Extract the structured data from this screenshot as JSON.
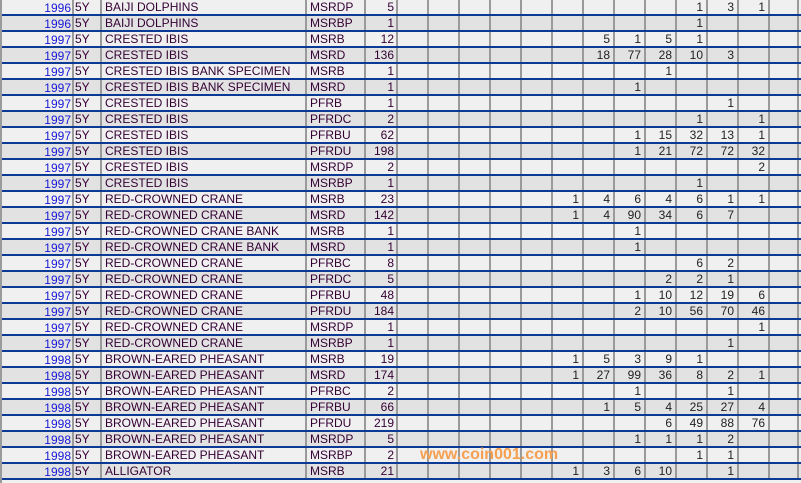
{
  "colors": {
    "row_light": "#f0f0f0",
    "row_dark": "#e2e2e2",
    "row_divider": "#0a3a96",
    "year_link": "#1a1ad6",
    "text": "#330033",
    "watermark": "#f5a050"
  },
  "watermark": "www.coin001.com",
  "grade_columns": 13,
  "rows": [
    {
      "year": "1996",
      "term": "5Y",
      "name": "BAIJI DOLPHINS",
      "grade": "MSRDP",
      "total": "5",
      "counts": {
        "9": "1",
        "10": "3",
        "11": "1"
      }
    },
    {
      "year": "1996",
      "term": "5Y",
      "name": "BAIJI DOLPHINS",
      "grade": "MSRBP",
      "total": "1",
      "counts": {
        "9": "1"
      }
    },
    {
      "year": "1997",
      "term": "5Y",
      "name": "CRESTED IBIS",
      "grade": "MSRB",
      "total": "12",
      "counts": {
        "6": "5",
        "7": "1",
        "8": "5",
        "9": "1"
      }
    },
    {
      "year": "1997",
      "term": "5Y",
      "name": "CRESTED IBIS",
      "grade": "MSRD",
      "total": "136",
      "counts": {
        "6": "18",
        "7": "77",
        "8": "28",
        "9": "10",
        "10": "3"
      }
    },
    {
      "year": "1997",
      "term": "5Y",
      "name": "CRESTED IBIS BANK SPECIMEN",
      "grade": "MSRB",
      "total": "1",
      "counts": {
        "8": "1"
      }
    },
    {
      "year": "1997",
      "term": "5Y",
      "name": "CRESTED IBIS BANK SPECIMEN",
      "grade": "MSRD",
      "total": "1",
      "counts": {
        "7": "1"
      }
    },
    {
      "year": "1997",
      "term": "5Y",
      "name": "CRESTED IBIS",
      "grade": "PFRB",
      "total": "1",
      "counts": {
        "10": "1"
      }
    },
    {
      "year": "1997",
      "term": "5Y",
      "name": "CRESTED IBIS",
      "grade": "PFRDC",
      "total": "2",
      "counts": {
        "9": "1",
        "11": "1"
      }
    },
    {
      "year": "1997",
      "term": "5Y",
      "name": "CRESTED IBIS",
      "grade": "PFRBU",
      "total": "62",
      "counts": {
        "7": "1",
        "8": "15",
        "9": "32",
        "10": "13",
        "11": "1"
      }
    },
    {
      "year": "1997",
      "term": "5Y",
      "name": "CRESTED IBIS",
      "grade": "PFRDU",
      "total": "198",
      "counts": {
        "7": "1",
        "8": "21",
        "9": "72",
        "10": "72",
        "11": "32"
      }
    },
    {
      "year": "1997",
      "term": "5Y",
      "name": "CRESTED IBIS",
      "grade": "MSRDP",
      "total": "2",
      "counts": {
        "11": "2"
      }
    },
    {
      "year": "1997",
      "term": "5Y",
      "name": "CRESTED IBIS",
      "grade": "MSRBP",
      "total": "1",
      "counts": {
        "9": "1"
      }
    },
    {
      "year": "1997",
      "term": "5Y",
      "name": "RED-CROWNED CRANE",
      "grade": "MSRB",
      "total": "23",
      "counts": {
        "5": "1",
        "6": "4",
        "7": "6",
        "8": "4",
        "9": "6",
        "10": "1",
        "11": "1"
      }
    },
    {
      "year": "1997",
      "term": "5Y",
      "name": "RED-CROWNED CRANE",
      "grade": "MSRD",
      "total": "142",
      "counts": {
        "5": "1",
        "6": "4",
        "7": "90",
        "8": "34",
        "9": "6",
        "10": "7"
      }
    },
    {
      "year": "1997",
      "term": "5Y",
      "name": "RED-CROWNED CRANE BANK",
      "grade": "MSRB",
      "total": "1",
      "counts": {
        "7": "1"
      }
    },
    {
      "year": "1997",
      "term": "5Y",
      "name": "RED-CROWNED CRANE BANK",
      "grade": "MSRD",
      "total": "1",
      "counts": {
        "7": "1"
      }
    },
    {
      "year": "1997",
      "term": "5Y",
      "name": "RED-CROWNED CRANE",
      "grade": "PFRBC",
      "total": "8",
      "counts": {
        "9": "6",
        "10": "2"
      }
    },
    {
      "year": "1997",
      "term": "5Y",
      "name": "RED-CROWNED CRANE",
      "grade": "PFRDC",
      "total": "5",
      "counts": {
        "8": "2",
        "9": "2",
        "10": "1"
      }
    },
    {
      "year": "1997",
      "term": "5Y",
      "name": "RED-CROWNED CRANE",
      "grade": "PFRBU",
      "total": "48",
      "counts": {
        "7": "1",
        "8": "10",
        "9": "12",
        "10": "19",
        "11": "6"
      }
    },
    {
      "year": "1997",
      "term": "5Y",
      "name": "RED-CROWNED CRANE",
      "grade": "PFRDU",
      "total": "184",
      "counts": {
        "7": "2",
        "8": "10",
        "9": "56",
        "10": "70",
        "11": "46"
      }
    },
    {
      "year": "1997",
      "term": "5Y",
      "name": "RED-CROWNED CRANE",
      "grade": "MSRDP",
      "total": "1",
      "counts": {
        "11": "1"
      }
    },
    {
      "year": "1997",
      "term": "5Y",
      "name": "RED-CROWNED CRANE",
      "grade": "MSRBP",
      "total": "1",
      "counts": {
        "10": "1"
      }
    },
    {
      "year": "1998",
      "term": "5Y",
      "name": "BROWN-EARED PHEASANT",
      "grade": "MSRB",
      "total": "19",
      "counts": {
        "5": "1",
        "6": "5",
        "7": "3",
        "8": "9",
        "9": "1"
      }
    },
    {
      "year": "1998",
      "term": "5Y",
      "name": "BROWN-EARED PHEASANT",
      "grade": "MSRD",
      "total": "174",
      "counts": {
        "5": "1",
        "6": "27",
        "7": "99",
        "8": "36",
        "9": "8",
        "10": "2",
        "11": "1"
      }
    },
    {
      "year": "1998",
      "term": "5Y",
      "name": "BROWN-EARED PHEASANT",
      "grade": "PFRBC",
      "total": "2",
      "counts": {
        "7": "1",
        "10": "1"
      }
    },
    {
      "year": "1998",
      "term": "5Y",
      "name": "BROWN-EARED PHEASANT",
      "grade": "PFRBU",
      "total": "66",
      "counts": {
        "6": "1",
        "7": "5",
        "8": "4",
        "9": "25",
        "10": "27",
        "11": "4"
      }
    },
    {
      "year": "1998",
      "term": "5Y",
      "name": "BROWN-EARED PHEASANT",
      "grade": "PFRDU",
      "total": "219",
      "counts": {
        "8": "6",
        "9": "49",
        "10": "88",
        "11": "76"
      }
    },
    {
      "year": "1998",
      "term": "5Y",
      "name": "BROWN-EARED PHEASANT",
      "grade": "MSRDP",
      "total": "5",
      "counts": {
        "7": "1",
        "8": "1",
        "9": "1",
        "10": "2"
      }
    },
    {
      "year": "1998",
      "term": "5Y",
      "name": "BROWN-EARED PHEASANT",
      "grade": "MSRBP",
      "total": "2",
      "counts": {
        "9": "1",
        "10": "1"
      }
    },
    {
      "year": "1998",
      "term": "5Y",
      "name": "ALLIGATOR",
      "grade": "MSRB",
      "total": "21",
      "counts": {
        "5": "1",
        "6": "3",
        "7": "6",
        "8": "10",
        "10": "1"
      }
    }
  ]
}
